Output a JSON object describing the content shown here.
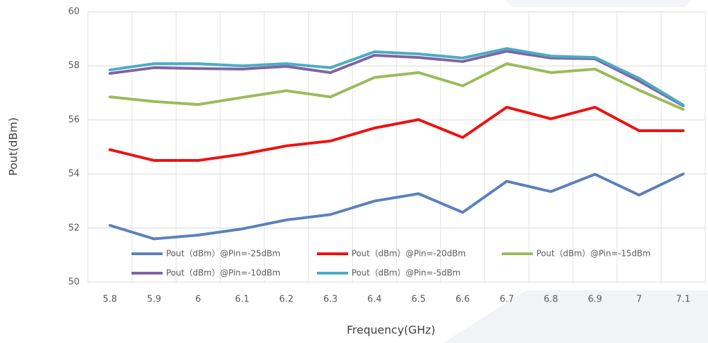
{
  "chart_data": {
    "type": "line",
    "x_label": "Frequency(GHz)",
    "y_label": "Pout(dBm)",
    "categories": [
      "5.8",
      "5.9",
      "6",
      "6.1",
      "6.2",
      "6.3",
      "6.4",
      "6.5",
      "6.6",
      "6.7",
      "6.8",
      "6.9",
      "7",
      "7.1"
    ],
    "series": [
      {
        "name": "Pout（dBm）@Pin=-25dBm",
        "color": "#5b80bd",
        "values": [
          52.1,
          51.6,
          51.74,
          51.97,
          52.3,
          52.5,
          53.0,
          53.27,
          52.58,
          53.73,
          53.35,
          53.99,
          53.22,
          54.0
        ]
      },
      {
        "name": "Pout（dBm）@Pin=-20dBm",
        "color": "#ee1111",
        "values": [
          54.9,
          54.5,
          54.5,
          54.73,
          55.04,
          55.22,
          55.7,
          56.01,
          55.35,
          56.47,
          56.04,
          56.47,
          55.6,
          55.6
        ]
      },
      {
        "name": "Pout（dBm）@Pin=-15dBm",
        "color": "#9bbb59",
        "values": [
          56.85,
          56.68,
          56.57,
          56.83,
          57.08,
          56.85,
          57.57,
          57.75,
          57.26,
          58.08,
          57.75,
          57.88,
          57.1,
          56.39
        ]
      },
      {
        "name": "Pout（dBm）@Pin=-10dBm",
        "color": "#8064a2",
        "values": [
          57.72,
          57.93,
          57.9,
          57.88,
          57.98,
          57.75,
          58.39,
          58.31,
          58.16,
          58.54,
          58.29,
          58.26,
          57.44,
          56.52
        ]
      },
      {
        "name": "Pout（dBm）@Pin=-5dBm",
        "color": "#4bacc6",
        "values": [
          57.85,
          58.08,
          58.08,
          58.0,
          58.08,
          57.93,
          58.52,
          58.44,
          58.29,
          58.64,
          58.36,
          58.31,
          57.54,
          56.55
        ]
      }
    ],
    "ylim": [
      50,
      60
    ],
    "yticks": [
      50,
      52,
      54,
      56,
      58,
      60
    ],
    "grid": true,
    "legend": "bottom"
  }
}
